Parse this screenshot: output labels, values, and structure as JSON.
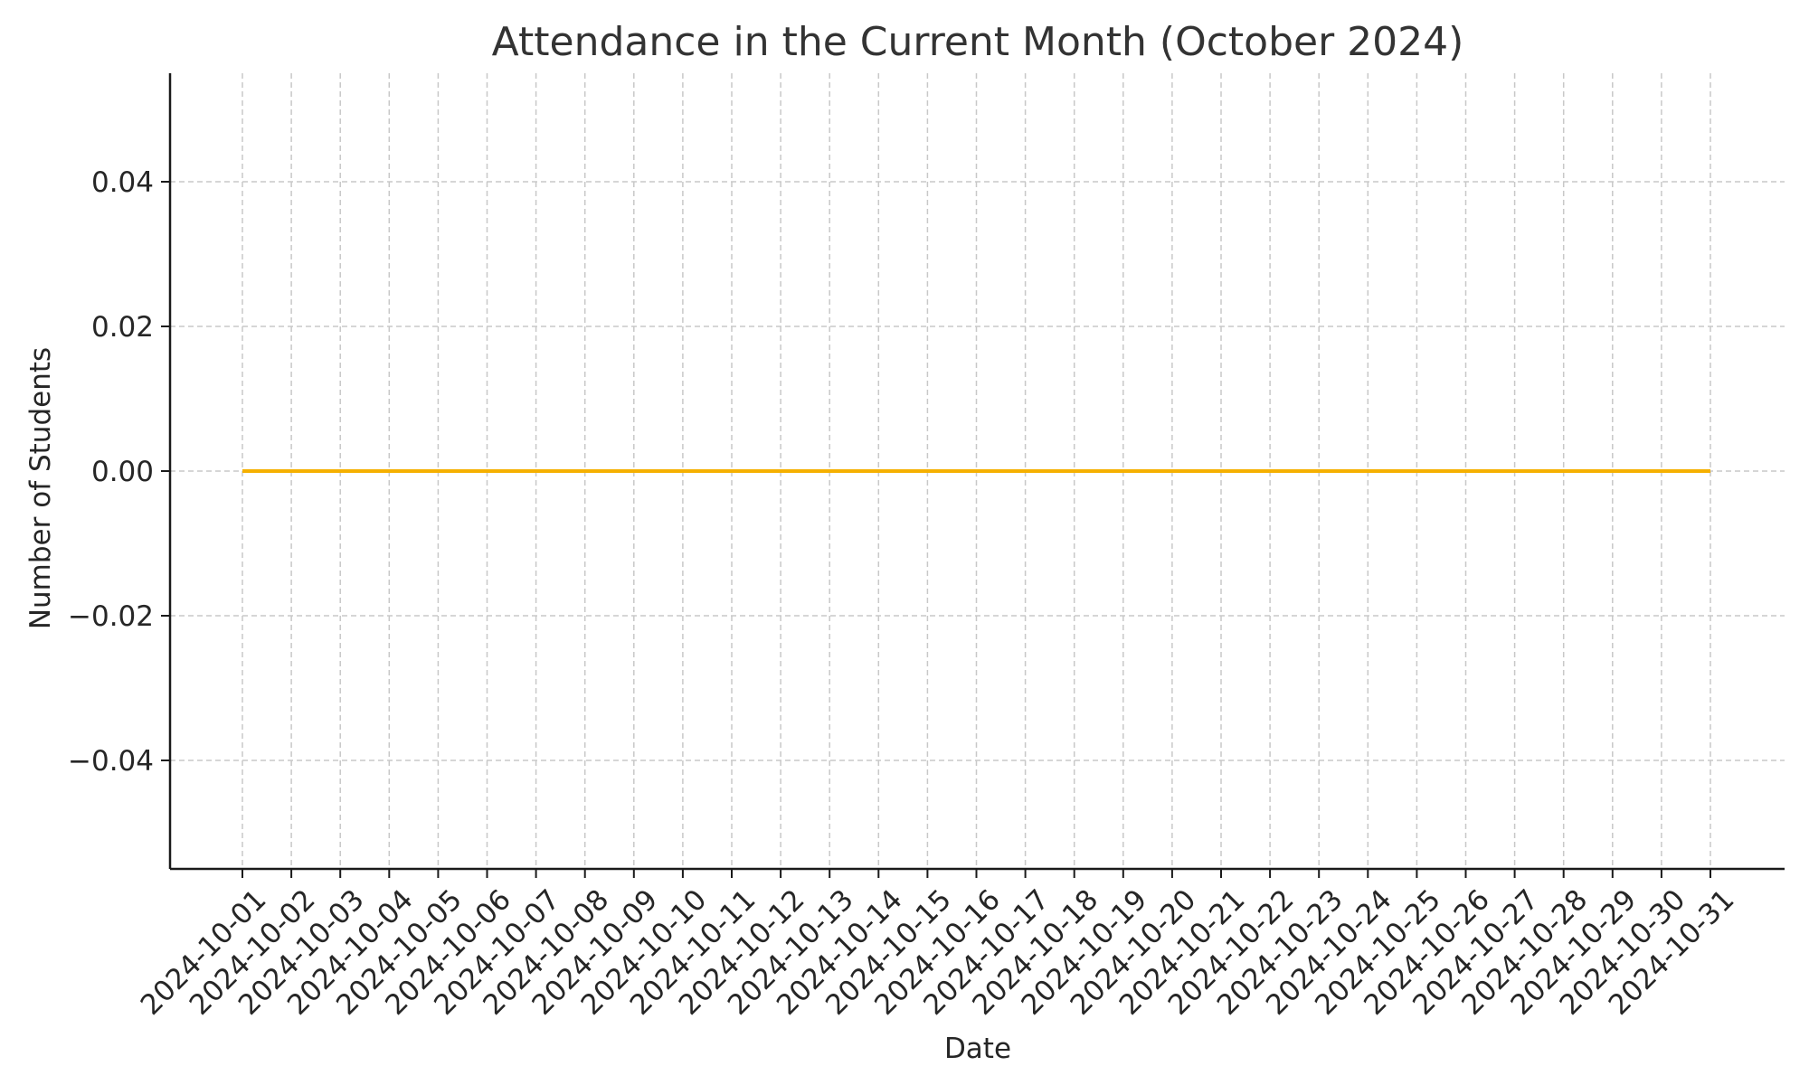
{
  "chart_data": {
    "type": "line",
    "title": "Attendance in the Current Month (October 2024)",
    "xlabel": "Date",
    "ylabel": "Number of Students",
    "x": [
      "2024-10-01",
      "2024-10-02",
      "2024-10-03",
      "2024-10-04",
      "2024-10-05",
      "2024-10-06",
      "2024-10-07",
      "2024-10-08",
      "2024-10-09",
      "2024-10-10",
      "2024-10-11",
      "2024-10-12",
      "2024-10-13",
      "2024-10-14",
      "2024-10-15",
      "2024-10-16",
      "2024-10-17",
      "2024-10-18",
      "2024-10-19",
      "2024-10-20",
      "2024-10-21",
      "2024-10-22",
      "2024-10-23",
      "2024-10-24",
      "2024-10-25",
      "2024-10-26",
      "2024-10-27",
      "2024-10-28",
      "2024-10-29",
      "2024-10-30",
      "2024-10-31"
    ],
    "series": [
      {
        "values": [
          0,
          0,
          0,
          0,
          0,
          0,
          0,
          0,
          0,
          0,
          0,
          0,
          0,
          0,
          0,
          0,
          0,
          0,
          0,
          0,
          0,
          0,
          0,
          0,
          0,
          0,
          0,
          0,
          0,
          0,
          0
        ],
        "color": "#f5b000"
      }
    ],
    "ylim": [
      -0.055,
      0.055
    ],
    "yticks": [
      "−0.04",
      "−0.02",
      "0.00",
      "0.02",
      "0.04"
    ],
    "ytick_values": [
      -0.04,
      -0.02,
      0,
      0.02,
      0.04
    ],
    "grid": true,
    "legend": "none"
  }
}
